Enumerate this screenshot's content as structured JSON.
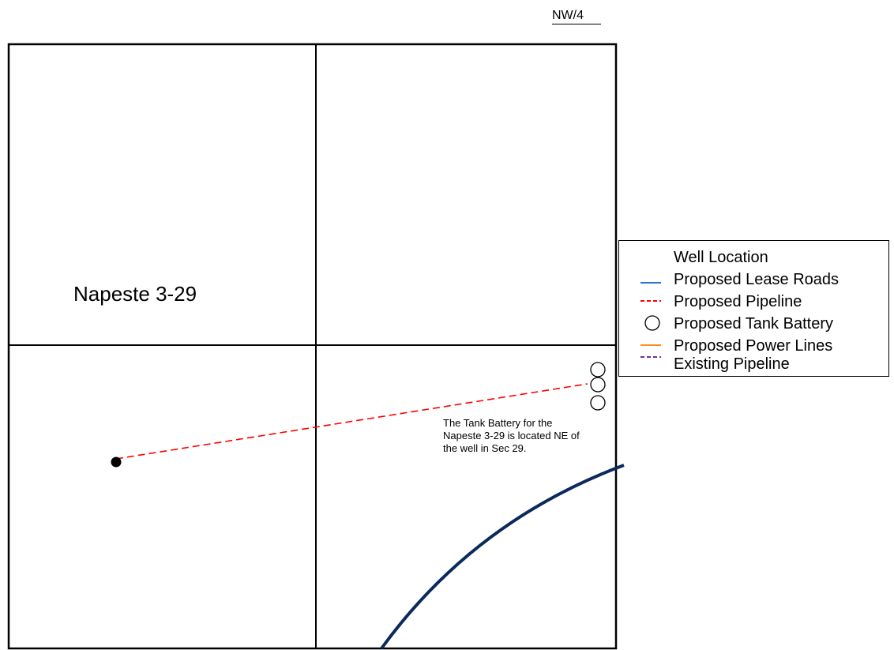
{
  "map": {
    "quarter_label": "NW/4",
    "well_name": "Napeste 3-29",
    "note_lines": [
      "The Tank Battery for the",
      "Napeste 3-29 is located NE of",
      "the well in Sec 29."
    ]
  },
  "legend": {
    "items": [
      {
        "label": "Well Location",
        "symbol": "none",
        "color": "#ffffff"
      },
      {
        "label": "Proposed Lease Roads",
        "symbol": "solid-line",
        "color": "#1f78d1"
      },
      {
        "label": "Proposed Pipeline",
        "symbol": "dashed-line",
        "color": "#ff0000"
      },
      {
        "label": "Proposed Tank Battery",
        "symbol": "circle",
        "color": "#000000"
      },
      {
        "label": "Proposed Power Lines",
        "symbol": "solid-line",
        "color": "#ff8c1a"
      },
      {
        "label": "Existing Pipeline",
        "symbol": "dashed-line",
        "color": "#7030a0"
      }
    ]
  },
  "colors": {
    "section_lines": "#000000",
    "proposed_pipeline": "#ff0000",
    "existing_road_curve": "#0b2a5b",
    "well_marker": "#000000"
  }
}
